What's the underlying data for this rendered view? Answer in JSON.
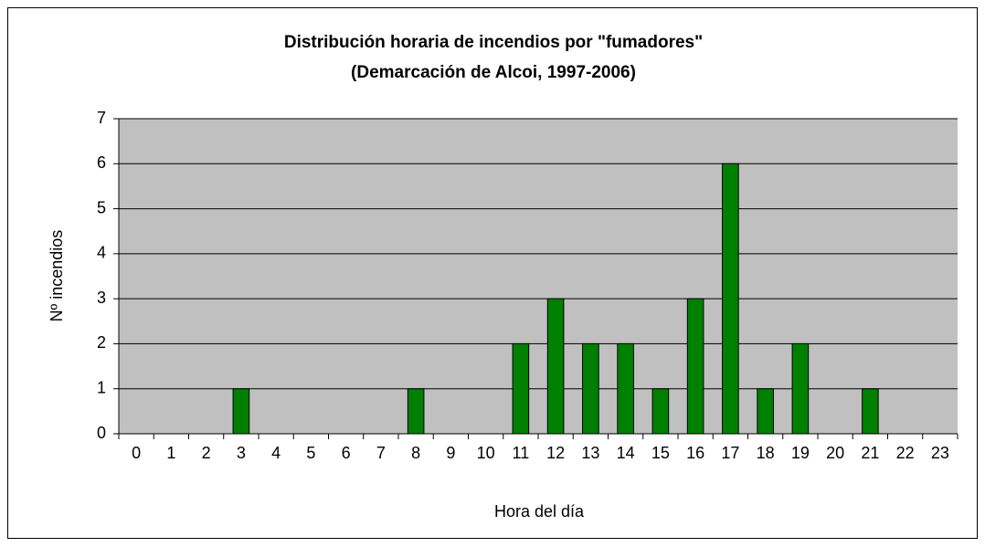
{
  "chart_data": {
    "type": "bar",
    "title": "Distribución horaria de incendios por \"fumadores\"",
    "subtitle": "(Demarcación de Alcoi, 1997-2006)",
    "x_label": "Hora del día",
    "y_label": "Nº incendios",
    "categories": [
      "0",
      "1",
      "2",
      "3",
      "4",
      "5",
      "6",
      "7",
      "8",
      "9",
      "10",
      "11",
      "12",
      "13",
      "14",
      "15",
      "16",
      "17",
      "18",
      "19",
      "20",
      "21",
      "22",
      "23"
    ],
    "values": [
      0,
      0,
      0,
      1,
      0,
      0,
      0,
      0,
      1,
      0,
      0,
      2,
      3,
      2,
      2,
      1,
      3,
      6,
      1,
      2,
      0,
      1,
      0,
      0
    ],
    "color": "#008000",
    "ylim": [
      0,
      7
    ],
    "yticks": [
      0,
      1,
      2,
      3,
      4,
      5,
      6,
      7
    ],
    "grid": true
  }
}
